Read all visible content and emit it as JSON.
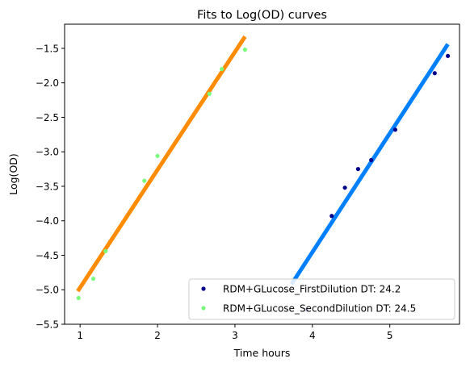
{
  "chart_data": {
    "type": "scatter",
    "title": "Fits to Log(OD) curves",
    "xlabel": "Time hours",
    "ylabel": "Log(OD)",
    "xlim": [
      0.8,
      5.9
    ],
    "ylim": [
      -5.5,
      -1.15
    ],
    "xticks": [
      1,
      2,
      3,
      4,
      5
    ],
    "xtick_labels": [
      "1",
      "2",
      "3",
      "4",
      "5"
    ],
    "yticks": [
      -5.5,
      -5.0,
      -4.5,
      -4.0,
      -3.5,
      -3.0,
      -2.5,
      -2.0,
      -1.5
    ],
    "ytick_labels": [
      "−5.5",
      "−5.0",
      "−4.5",
      "−4.0",
      "−3.5",
      "−3.0",
      "−2.5",
      "−2.0",
      "−1.5"
    ],
    "grid": false,
    "legend_position": "lower-right",
    "series": [
      {
        "name": "RDM+GLucose_FirstDilution DT: 24.2",
        "color": "#00008b",
        "points": [
          [
            3.93,
            -5.29
          ],
          [
            4.25,
            -3.93
          ],
          [
            4.42,
            -3.52
          ],
          [
            4.59,
            -3.25
          ],
          [
            4.76,
            -3.12
          ],
          [
            5.07,
            -2.68
          ],
          [
            5.58,
            -1.86
          ],
          [
            5.75,
            -1.61
          ]
        ]
      },
      {
        "name": "RDM+GLucose_SecondDilution DT: 24.5",
        "color": "#7cfc7c",
        "points": [
          [
            0.98,
            -5.12
          ],
          [
            1.17,
            -4.84
          ],
          [
            1.33,
            -4.44
          ],
          [
            1.83,
            -3.42
          ],
          [
            2.0,
            -3.06
          ],
          [
            2.67,
            -2.16
          ],
          [
            2.83,
            -1.8
          ],
          [
            3.13,
            -1.52
          ]
        ]
      }
    ],
    "fits": [
      {
        "color": "#0080ff",
        "x": [
          3.73,
          5.75
        ],
        "y": [
          -4.92,
          -1.44
        ]
      },
      {
        "color": "#ff8c00",
        "x": [
          0.97,
          3.13
        ],
        "y": [
          -5.02,
          -1.33
        ]
      }
    ]
  }
}
